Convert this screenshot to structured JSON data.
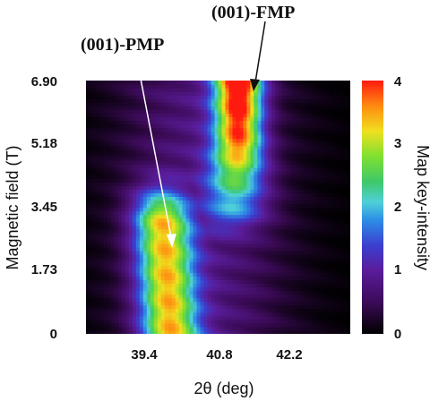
{
  "chart_data": {
    "type": "heatmap",
    "xlabel": "2θ (deg)",
    "ylabel": "Magnetic field (T)",
    "colorbar_label": "Map key-intensity",
    "x_ticks": [
      "39.4",
      "40.8",
      "42.2"
    ],
    "x_tick_values": [
      39.4,
      40.8,
      42.2
    ],
    "y_ticks": [
      "0",
      "1.73",
      "3.45",
      "5.18",
      "6.90"
    ],
    "y_tick_values": [
      0,
      1.73,
      3.45,
      5.18,
      6.9
    ],
    "xlim": [
      38.3,
      43.5
    ],
    "ylim": [
      0,
      6.9
    ],
    "colorbar_ticks": [
      "0",
      "1",
      "2",
      "3",
      "4"
    ],
    "colorbar_range": [
      0,
      4
    ],
    "annotations": [
      {
        "text": "(001)-PMP",
        "x": 39.95,
        "y": 2.3
      },
      {
        "text": "(001)-FMP",
        "x": 41.3,
        "y": 6.6
      }
    ],
    "peaks": [
      {
        "name": "(001)-PMP",
        "field_range": [
          0,
          3.8
        ],
        "center_2theta": 39.95,
        "max_intensity": 2.8
      },
      {
        "name": "(001)-FMP",
        "field_range": [
          3.0,
          6.9
        ],
        "center_2theta": 41.3,
        "max_intensity": 4.0
      }
    ],
    "grid": false
  }
}
